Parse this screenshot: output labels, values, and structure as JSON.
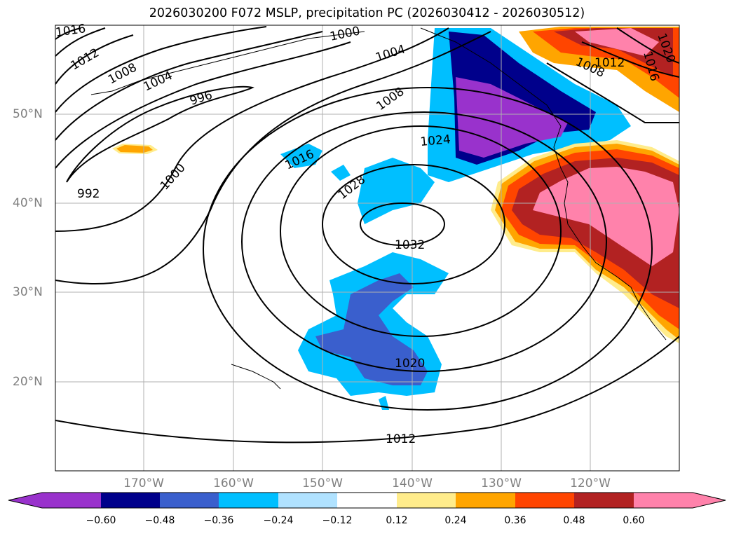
{
  "title": "2026030200 F072 MSLP, precipitation PC (2026030412 - 2026030512)",
  "axes": {
    "lat_labels": [
      "50°N",
      "40°N",
      "30°N",
      "20°N"
    ],
    "lon_labels": [
      "170°W",
      "160°W",
      "150°W",
      "140°W",
      "130°W",
      "120°W"
    ]
  },
  "colorbar": {
    "colors": [
      "#9932cc",
      "#00008b",
      "#3a5fcd",
      "#00bfff",
      "#b0e2ff",
      "#ffffff",
      "#ffec8b",
      "#ffa500",
      "#ff4500",
      "#b22222",
      "#ff82ab"
    ],
    "ticks": [
      "−0.60",
      "−0.48",
      "−0.36",
      "−0.24",
      "−0.12",
      "0.12",
      "0.24",
      "0.36",
      "0.48",
      "0.60"
    ]
  },
  "isobar_labels": [
    "1016",
    "1012",
    "1008",
    "1004",
    "996",
    "992",
    "1000",
    "1000",
    "1004",
    "1008",
    "1016",
    "1024",
    "1028",
    "1032",
    "1020",
    "1012",
    "1008",
    "1012",
    "1016",
    "1020"
  ]
}
